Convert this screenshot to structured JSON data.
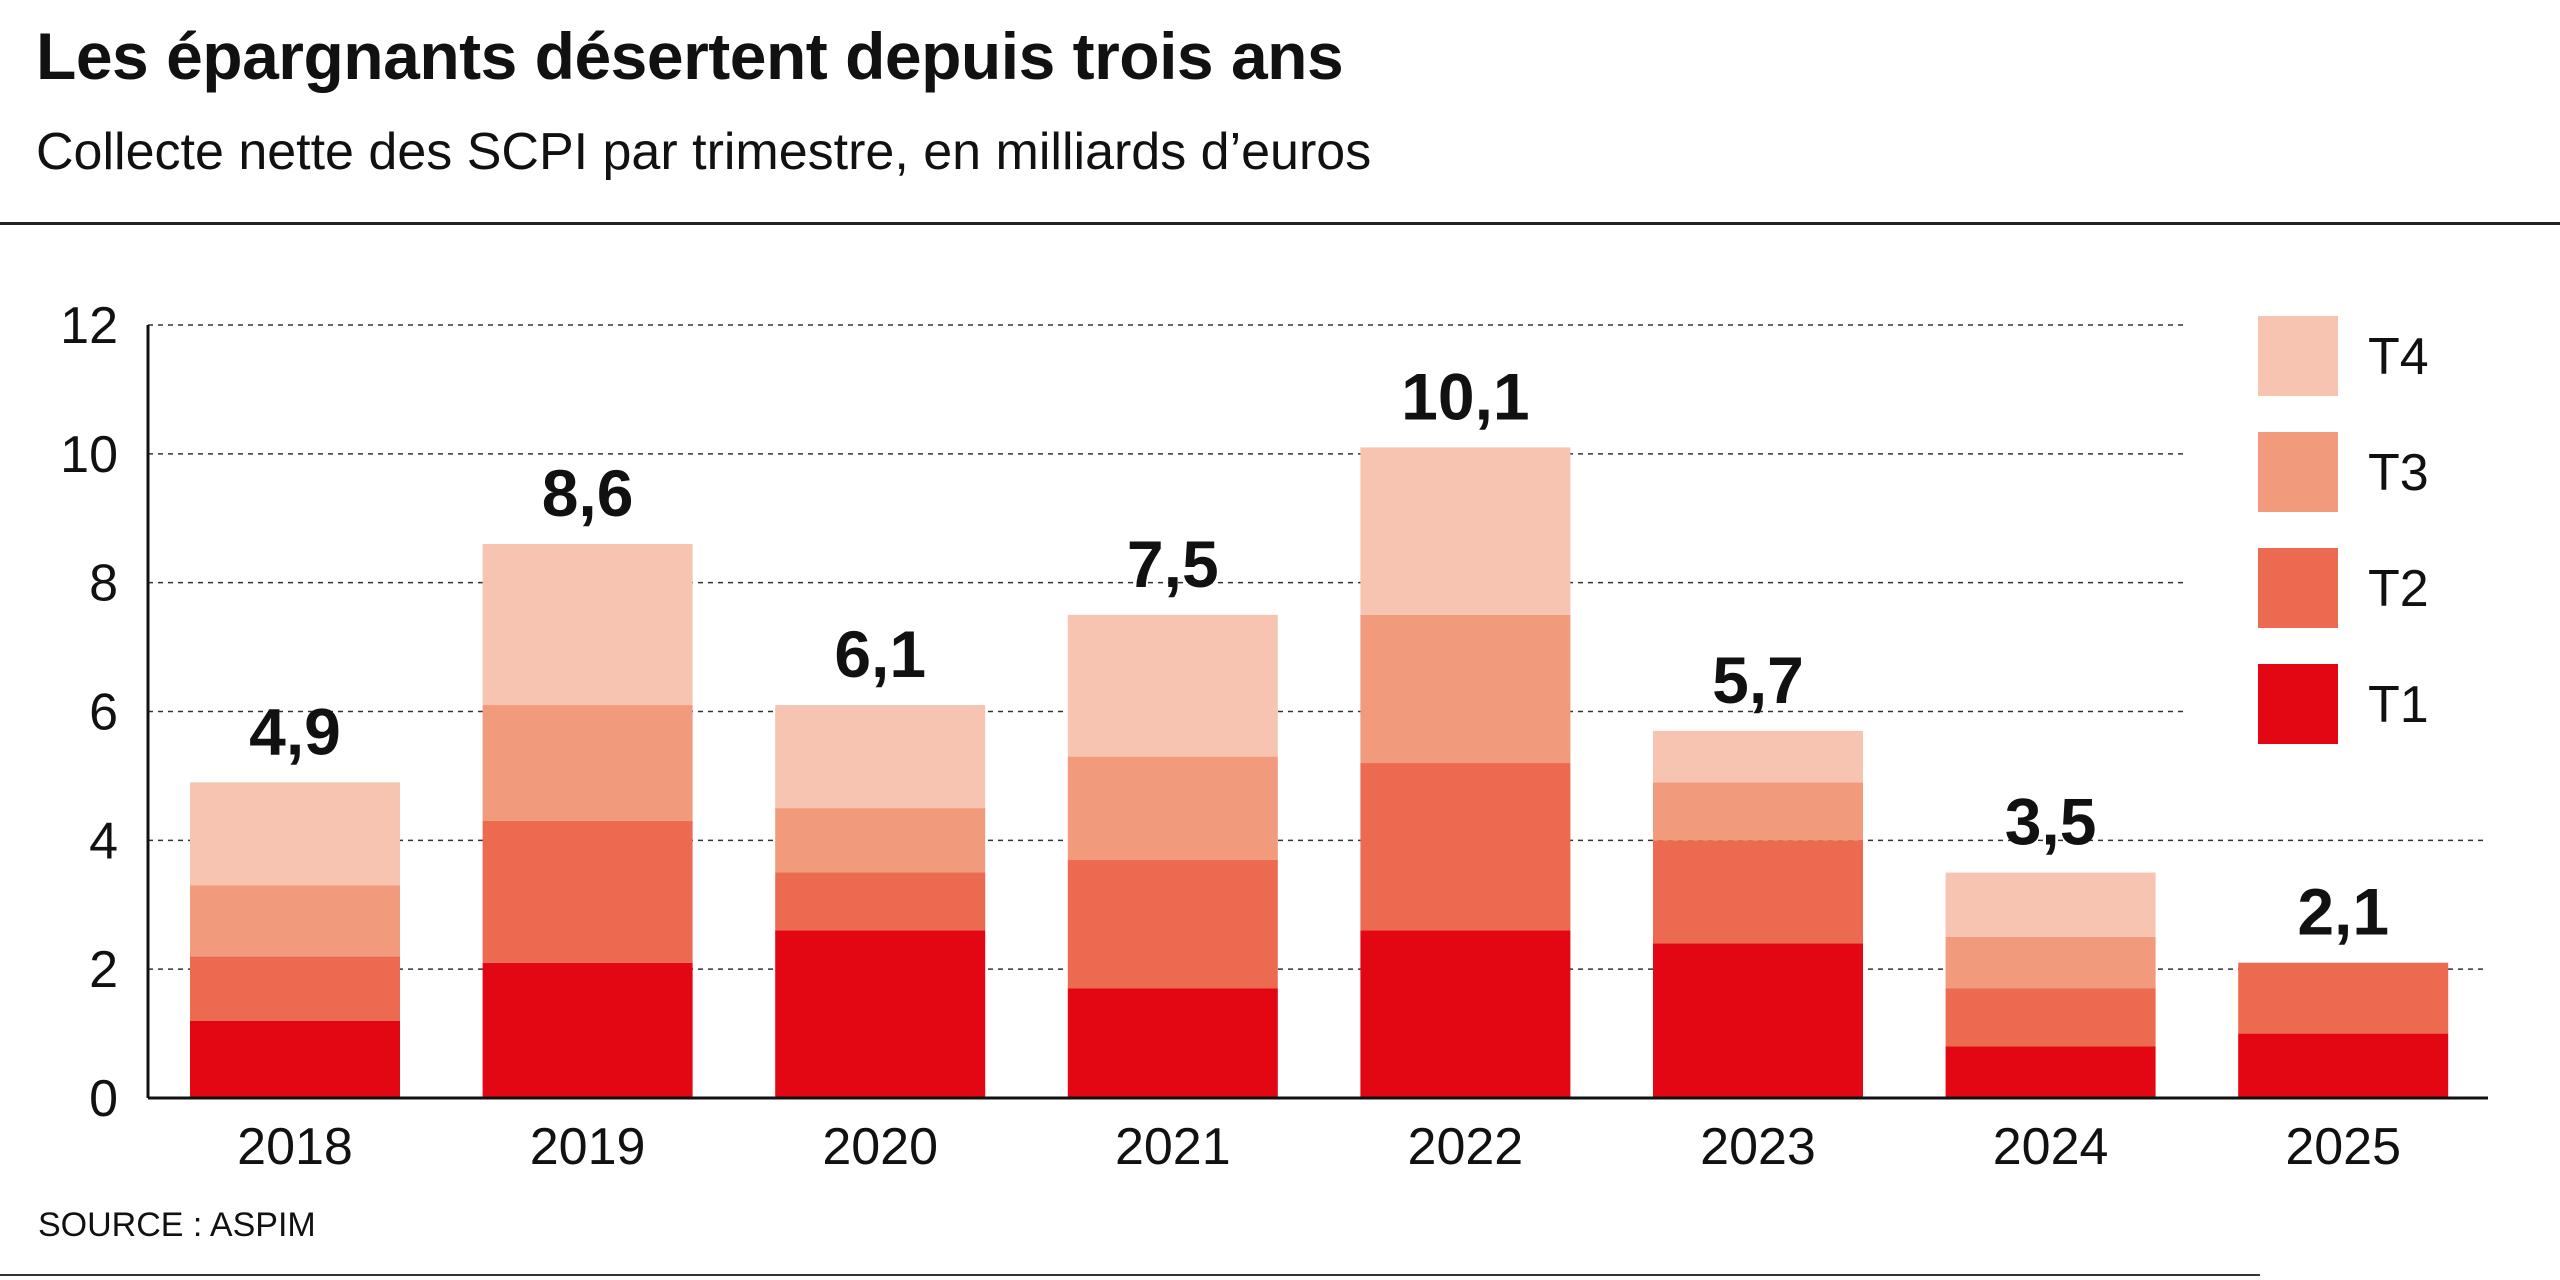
{
  "header": {
    "title": "Les épargnants désertent depuis trois ans",
    "subtitle": "Collecte nette des SCPI par trimestre, en milliards d’euros"
  },
  "footer": {
    "source": "SOURCE : ASPIM"
  },
  "chart_data": {
    "type": "bar",
    "stacked": true,
    "categories": [
      "2018",
      "2019",
      "2020",
      "2021",
      "2022",
      "2023",
      "2024",
      "2025"
    ],
    "series": [
      {
        "name": "T1",
        "color": "#e30613",
        "values": [
          1.2,
          2.1,
          2.6,
          1.7,
          2.6,
          2.4,
          0.8,
          1.0
        ]
      },
      {
        "name": "T2",
        "color": "#ec6a50",
        "values": [
          1.0,
          2.2,
          0.9,
          2.0,
          2.6,
          1.6,
          0.9,
          1.1
        ]
      },
      {
        "name": "T3",
        "color": "#f19a7c",
        "values": [
          1.1,
          1.8,
          1.0,
          1.6,
          2.3,
          0.9,
          0.8,
          0.0
        ]
      },
      {
        "name": "T4",
        "color": "#f7c4b1",
        "values": [
          1.6,
          2.5,
          1.6,
          2.2,
          2.6,
          0.8,
          1.0,
          0.0
        ]
      }
    ],
    "totals": [
      "4,9",
      "8,6",
      "6,1",
      "7,5",
      "10,1",
      "5,7",
      "3,5",
      "2,1"
    ],
    "yticks": [
      "0",
      "2",
      "4",
      "6",
      "8",
      "10",
      "12"
    ],
    "ylim": [
      0,
      12
    ],
    "grid": true,
    "gridStyle": "dashed",
    "legend": {
      "position": "top-right",
      "order": [
        "T4",
        "T3",
        "T2",
        "T1"
      ]
    }
  }
}
